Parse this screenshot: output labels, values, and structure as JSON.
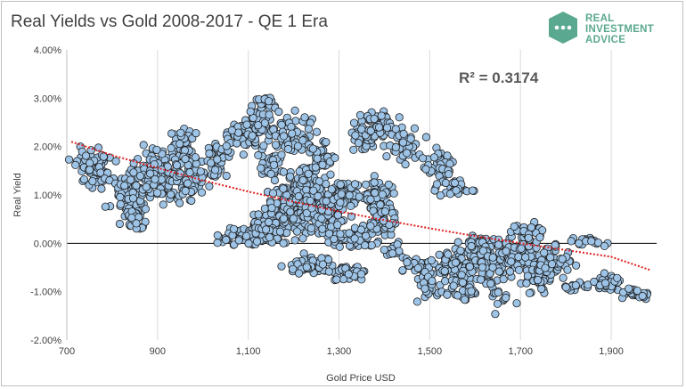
{
  "logo": {
    "lines": [
      "REAL",
      "INVESTMENT",
      "ADVICE"
    ],
    "icon": "chat-dots-icon",
    "color": "#5aa88f"
  },
  "chart_data": {
    "type": "scatter",
    "title": "Real Yields vs Gold 2008-2017 - QE 1 Era",
    "xlabel": "Gold Price USD",
    "ylabel": "Real Yield",
    "xlim": [
      700,
      2000
    ],
    "ylim": [
      -2.0,
      4.0
    ],
    "x_ticks": [
      700,
      900,
      1100,
      1300,
      1500,
      1700,
      1900
    ],
    "x_tick_labels": [
      "700",
      "900",
      "1,100",
      "1,300",
      "1,500",
      "1,700",
      "1,900"
    ],
    "y_ticks": [
      4,
      3,
      2,
      1,
      0,
      -1,
      -2
    ],
    "y_tick_labels": [
      "4.00%",
      "3.00%",
      "2.00%",
      "1.00%",
      "0.00%",
      "-1.00%",
      "-2.00%"
    ],
    "grid": "vertical",
    "annotation": "R² = 0.3174",
    "point_color": "#9dc3e6",
    "trendline": {
      "style": "dotted",
      "color": "#e02020",
      "points": [
        [
          710,
          2.1
        ],
        [
          800,
          1.82
        ],
        [
          900,
          1.56
        ],
        [
          1000,
          1.3
        ],
        [
          1100,
          1.07
        ],
        [
          1200,
          0.86
        ],
        [
          1300,
          0.66
        ],
        [
          1400,
          0.48
        ],
        [
          1500,
          0.31
        ],
        [
          1600,
          0.15
        ],
        [
          1700,
          0.0
        ],
        [
          1800,
          -0.14
        ],
        [
          1900,
          -0.28
        ],
        [
          1985,
          -0.55
        ]
      ]
    },
    "series": [
      {
        "clusters": [
          {
            "cx": 760,
            "cy": 1.55,
            "sx": 30,
            "sy": 0.28,
            "n": 70
          },
          {
            "cx": 840,
            "cy": 1.05,
            "sx": 30,
            "sy": 0.4,
            "n": 80
          },
          {
            "cx": 860,
            "cy": 0.45,
            "sx": 18,
            "sy": 0.15,
            "n": 20
          },
          {
            "cx": 900,
            "cy": 1.4,
            "sx": 30,
            "sy": 0.35,
            "n": 110
          },
          {
            "cx": 950,
            "cy": 2.0,
            "sx": 20,
            "sy": 0.25,
            "n": 40
          },
          {
            "cx": 970,
            "cy": 1.3,
            "sx": 25,
            "sy": 0.35,
            "n": 70
          },
          {
            "cx": 1030,
            "cy": 1.7,
            "sx": 20,
            "sy": 0.3,
            "n": 30
          },
          {
            "cx": 1075,
            "cy": 2.2,
            "sx": 25,
            "sy": 0.25,
            "n": 40
          },
          {
            "cx": 1085,
            "cy": 0.15,
            "sx": 30,
            "sy": 0.15,
            "n": 40
          },
          {
            "cx": 1125,
            "cy": 2.4,
            "sx": 20,
            "sy": 0.35,
            "n": 50
          },
          {
            "cx": 1140,
            "cy": 2.9,
            "sx": 18,
            "sy": 0.12,
            "n": 18
          },
          {
            "cx": 1150,
            "cy": 1.6,
            "sx": 20,
            "sy": 0.2,
            "n": 35
          },
          {
            "cx": 1150,
            "cy": 0.3,
            "sx": 40,
            "sy": 0.25,
            "n": 90
          },
          {
            "cx": 1190,
            "cy": 0.75,
            "sx": 35,
            "sy": 0.35,
            "n": 130
          },
          {
            "cx": 1200,
            "cy": 2.3,
            "sx": 35,
            "sy": 0.3,
            "n": 60
          },
          {
            "cx": 1230,
            "cy": 1.0,
            "sx": 30,
            "sy": 0.4,
            "n": 130
          },
          {
            "cx": 1240,
            "cy": -0.45,
            "sx": 35,
            "sy": 0.12,
            "n": 60
          },
          {
            "cx": 1260,
            "cy": 1.8,
            "sx": 20,
            "sy": 0.25,
            "n": 40
          },
          {
            "cx": 1270,
            "cy": 0.55,
            "sx": 30,
            "sy": 0.3,
            "n": 80
          },
          {
            "cx": 1310,
            "cy": 1.0,
            "sx": 25,
            "sy": 0.2,
            "n": 70
          },
          {
            "cx": 1320,
            "cy": -0.6,
            "sx": 25,
            "sy": 0.12,
            "n": 30
          },
          {
            "cx": 1340,
            "cy": 0.1,
            "sx": 40,
            "sy": 0.15,
            "n": 50
          },
          {
            "cx": 1350,
            "cy": 2.2,
            "sx": 25,
            "sy": 0.2,
            "n": 40
          },
          {
            "cx": 1390,
            "cy": 2.45,
            "sx": 30,
            "sy": 0.2,
            "n": 60
          },
          {
            "cx": 1380,
            "cy": 1.0,
            "sx": 30,
            "sy": 0.25,
            "n": 60
          },
          {
            "cx": 1390,
            "cy": 0.45,
            "sx": 25,
            "sy": 0.2,
            "n": 40
          },
          {
            "cx": 1420,
            "cy": -0.15,
            "sx": 20,
            "sy": 0.1,
            "n": 15
          },
          {
            "cx": 1440,
            "cy": 2.0,
            "sx": 30,
            "sy": 0.25,
            "n": 40
          },
          {
            "cx": 1480,
            "cy": -0.5,
            "sx": 25,
            "sy": 0.15,
            "n": 40
          },
          {
            "cx": 1500,
            "cy": -0.9,
            "sx": 20,
            "sy": 0.2,
            "n": 25
          },
          {
            "cx": 1520,
            "cy": 1.6,
            "sx": 25,
            "sy": 0.25,
            "n": 40
          },
          {
            "cx": 1560,
            "cy": 1.15,
            "sx": 30,
            "sy": 0.12,
            "n": 25
          },
          {
            "cx": 1560,
            "cy": -0.45,
            "sx": 30,
            "sy": 0.25,
            "n": 80
          },
          {
            "cx": 1580,
            "cy": -0.95,
            "sx": 30,
            "sy": 0.2,
            "n": 30
          },
          {
            "cx": 1610,
            "cy": 0.0,
            "sx": 25,
            "sy": 0.12,
            "n": 40
          },
          {
            "cx": 1640,
            "cy": -0.4,
            "sx": 30,
            "sy": 0.3,
            "n": 80
          },
          {
            "cx": 1660,
            "cy": -1.1,
            "sx": 20,
            "sy": 0.2,
            "n": 15
          },
          {
            "cx": 1700,
            "cy": -0.2,
            "sx": 30,
            "sy": 0.25,
            "n": 80
          },
          {
            "cx": 1720,
            "cy": 0.2,
            "sx": 25,
            "sy": 0.15,
            "n": 35
          },
          {
            "cx": 1740,
            "cy": -0.7,
            "sx": 25,
            "sy": 0.2,
            "n": 40
          },
          {
            "cx": 1780,
            "cy": -0.3,
            "sx": 25,
            "sy": 0.25,
            "n": 40
          },
          {
            "cx": 1820,
            "cy": -0.9,
            "sx": 20,
            "sy": 0.08,
            "n": 15
          },
          {
            "cx": 1850,
            "cy": 0.05,
            "sx": 25,
            "sy": 0.1,
            "n": 20
          },
          {
            "cx": 1890,
            "cy": -0.85,
            "sx": 25,
            "sy": 0.12,
            "n": 40
          },
          {
            "cx": 1950,
            "cy": -1.05,
            "sx": 25,
            "sy": 0.08,
            "n": 30
          }
        ]
      }
    ]
  }
}
